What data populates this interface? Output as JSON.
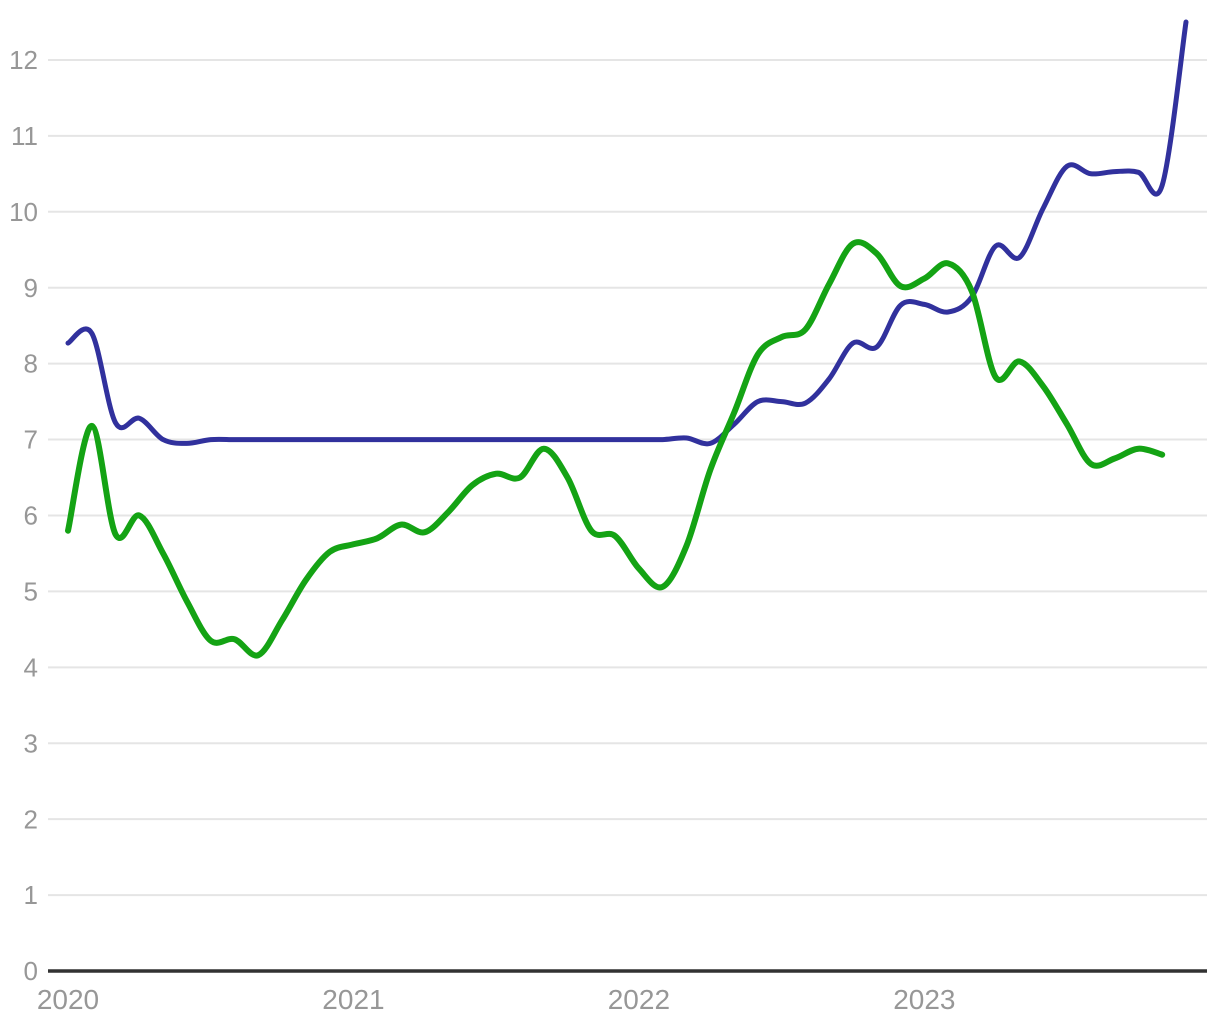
{
  "page": {
    "background": "#ffffff"
  },
  "chart_data": {
    "type": "line",
    "title": "",
    "grid": true,
    "legend": false,
    "x_unit": "month",
    "x_range": [
      "2020-01",
      "2023-12"
    ],
    "x_tick_labels": [
      "2020",
      "2021",
      "2022",
      "2023"
    ],
    "x_tick_month_index": [
      0,
      12,
      24,
      36
    ],
    "y_ticks": [
      0,
      1,
      2,
      3,
      4,
      5,
      6,
      7,
      8,
      9,
      10,
      11,
      12
    ],
    "ylim": [
      0,
      12.6
    ],
    "axis_colors": {
      "gridline": "#e5e5e5",
      "axis_line": "#323232",
      "tick_label": "#979797"
    },
    "series": [
      {
        "name": "blue-series",
        "color": "#31319D",
        "stroke_width": 5,
        "start_month": "2020-01",
        "values": [
          8.27,
          8.4,
          7.22,
          7.28,
          7.0,
          6.95,
          7.0,
          7.0,
          7.0,
          7.0,
          7.0,
          7.0,
          7.0,
          7.0,
          7.0,
          7.0,
          7.0,
          7.0,
          7.0,
          7.0,
          7.0,
          7.0,
          7.0,
          7.0,
          7.0,
          7.0,
          7.02,
          6.95,
          7.2,
          7.5,
          7.5,
          7.48,
          7.8,
          8.27,
          8.22,
          8.77,
          8.78,
          8.68,
          8.88,
          9.55,
          9.4,
          10.05,
          10.6,
          10.5,
          10.53,
          10.52,
          10.35,
          12.5
        ]
      },
      {
        "name": "green-series",
        "color": "#14A314",
        "stroke_width": 6,
        "start_month": "2020-01",
        "values": [
          5.8,
          7.18,
          5.75,
          6.0,
          5.5,
          4.87,
          4.35,
          4.37,
          4.16,
          4.62,
          5.15,
          5.52,
          5.62,
          5.7,
          5.88,
          5.78,
          6.05,
          6.4,
          6.55,
          6.5,
          6.88,
          6.5,
          5.8,
          5.73,
          5.3,
          5.06,
          5.6,
          6.6,
          7.35,
          8.12,
          8.35,
          8.45,
          9.05,
          9.58,
          9.45,
          9.02,
          9.12,
          9.32,
          8.95,
          7.82,
          8.03,
          7.7,
          7.2,
          6.68,
          6.75,
          6.88,
          6.8
        ]
      }
    ]
  }
}
